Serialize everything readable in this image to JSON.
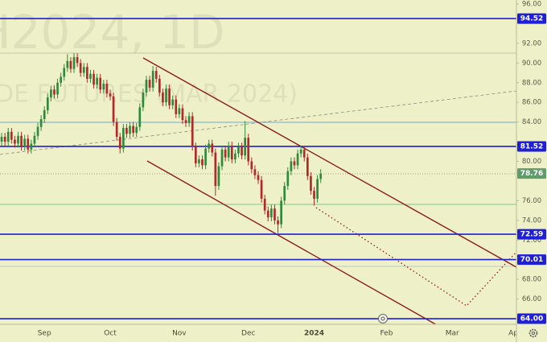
{
  "chart_data": {
    "type": "candlestick",
    "watermark": "H2024, 1D",
    "watermark_subtitle": "DE FUTURES (MAR 2024)",
    "categories": [
      null,
      null,
      null,
      null,
      null,
      null,
      null,
      null,
      null,
      null,
      null,
      null,
      null,
      "Sep",
      null,
      null,
      null,
      null,
      null,
      null,
      null,
      null,
      null,
      null,
      null,
      null,
      null,
      null,
      null,
      null,
      null,
      null,
      null,
      "Oct",
      null,
      null,
      null,
      null,
      null,
      null,
      null,
      null,
      null,
      null,
      null,
      null,
      null,
      null,
      null,
      null,
      null,
      null,
      null,
      null,
      "Nov",
      null,
      null,
      null,
      null,
      null,
      null,
      null,
      null,
      null,
      null,
      null,
      null,
      null,
      null,
      null,
      null,
      null,
      null,
      null,
      null,
      "Dec",
      null,
      null,
      null,
      null,
      null,
      null,
      null,
      null,
      null,
      null,
      null,
      null,
      null,
      null,
      null,
      null,
      null,
      null,
      null,
      "2024",
      null,
      null,
      null,
      null,
      null,
      null,
      null,
      null,
      null,
      null,
      null,
      null,
      null,
      null,
      null,
      null,
      null,
      null,
      null,
      null,
      null,
      "Feb",
      null,
      null,
      null,
      null,
      null,
      null,
      null,
      null,
      null,
      null,
      null,
      null,
      null,
      null,
      null,
      null,
      null,
      null,
      null,
      "Mar",
      null,
      null,
      null,
      null,
      null,
      null,
      null,
      null,
      null,
      null,
      null,
      null,
      null,
      null,
      null,
      null,
      null,
      null,
      "Apr"
    ],
    "candles": {
      "up_color": "#2f8a3c",
      "down_color": "#b02a2a",
      "open": [
        82.0,
        82.5,
        82.0,
        83.0,
        82.2,
        81.8,
        82.6,
        81.5,
        82.3,
        81.2,
        81.8,
        82.6,
        83.5,
        84.3,
        85.2,
        86.5,
        87.3,
        86.8,
        88.0,
        88.6,
        89.5,
        90.2,
        89.4,
        90.6,
        90.0,
        89.0,
        89.6,
        88.4,
        88.9,
        87.8,
        88.5,
        87.3,
        87.9,
        86.9,
        86.6,
        84.0,
        82.5,
        81.3,
        83.4,
        82.8,
        83.6,
        82.9,
        83.5,
        85.5,
        87.0,
        88.3,
        87.5,
        89.2,
        88.4,
        87.0,
        86.0,
        87.4,
        85.7,
        86.3,
        84.8,
        85.4,
        84.2,
        83.9,
        84.6,
        81.5,
        79.8,
        80.2,
        79.6,
        81.3,
        81.8,
        80.9,
        77.5,
        79.5,
        81.2,
        80.4,
        81.6,
        80.2,
        80.8,
        81.5,
        80.6,
        82.4,
        80.0,
        79.2,
        78.6,
        78.1,
        76.2,
        75.0,
        74.3,
        75.2,
        74.0,
        73.6,
        76.0,
        77.5,
        79.0,
        80.0,
        79.6,
        80.8,
        81.2,
        80.4,
        78.5,
        77.0,
        76.2,
        78.2,
        null,
        null,
        null,
        null,
        null,
        null,
        null,
        null,
        null,
        null,
        null,
        null,
        null,
        null,
        null,
        null,
        null,
        null,
        null,
        null,
        null,
        null,
        null,
        null,
        null,
        null,
        null,
        null,
        null,
        null,
        null,
        null,
        null,
        null,
        null,
        null,
        null,
        null,
        null,
        null,
        null,
        null,
        null,
        null,
        null,
        null,
        null,
        null,
        null,
        null,
        null,
        null,
        null,
        null,
        null
      ],
      "high": [
        82.9,
        82.9,
        83.4,
        83.4,
        82.6,
        83.0,
        83.0,
        82.7,
        82.7,
        82.2,
        83.0,
        83.9,
        84.7,
        85.6,
        86.9,
        87.7,
        87.7,
        88.4,
        89.0,
        89.9,
        90.9,
        90.6,
        91.0,
        91.0,
        90.4,
        90.0,
        90.0,
        89.3,
        89.3,
        88.9,
        88.9,
        88.3,
        88.3,
        87.3,
        87.0,
        84.4,
        82.9,
        83.8,
        83.8,
        84.0,
        84.0,
        83.9,
        85.9,
        87.4,
        88.7,
        88.7,
        89.7,
        89.6,
        88.8,
        87.4,
        87.8,
        87.8,
        86.7,
        86.7,
        85.8,
        85.8,
        84.6,
        85.0,
        85.0,
        81.9,
        80.6,
        80.6,
        81.7,
        82.2,
        82.2,
        81.3,
        79.9,
        81.6,
        81.6,
        82.0,
        82.0,
        81.2,
        81.9,
        81.9,
        84.1,
        82.8,
        80.4,
        79.6,
        79.0,
        78.5,
        76.6,
        75.4,
        75.6,
        75.6,
        74.4,
        76.4,
        77.9,
        79.4,
        80.4,
        80.4,
        81.2,
        81.6,
        81.6,
        80.8,
        78.9,
        77.4,
        78.6,
        79.2,
        null,
        null,
        null,
        null,
        null,
        null,
        null,
        null,
        null,
        null,
        null,
        null,
        null,
        null,
        null,
        null,
        null,
        null,
        null,
        null,
        null,
        null,
        null,
        null,
        null,
        null,
        null,
        null,
        null,
        null,
        null,
        null,
        null,
        null,
        null,
        null,
        null,
        null,
        null,
        null,
        null,
        null,
        null,
        null,
        null,
        null,
        null,
        null,
        null,
        null,
        null,
        null,
        null,
        null,
        null
      ],
      "low": [
        81.6,
        81.6,
        81.6,
        81.8,
        81.4,
        81.4,
        81.1,
        81.1,
        80.8,
        80.8,
        81.4,
        82.2,
        83.1,
        83.9,
        84.8,
        86.1,
        86.4,
        86.4,
        87.6,
        88.2,
        89.1,
        89.0,
        89.0,
        89.6,
        88.6,
        88.6,
        88.0,
        88.0,
        87.4,
        87.4,
        86.9,
        86.9,
        86.5,
        86.2,
        83.6,
        82.1,
        80.8,
        80.9,
        82.4,
        82.4,
        82.5,
        82.5,
        83.1,
        85.1,
        86.6,
        87.1,
        87.1,
        88.0,
        86.6,
        85.6,
        85.6,
        85.3,
        85.3,
        84.4,
        84.4,
        83.8,
        83.5,
        83.5,
        81.1,
        79.4,
        79.4,
        79.2,
        79.2,
        80.9,
        80.5,
        76.5,
        77.1,
        79.1,
        80.0,
        80.0,
        79.8,
        79.8,
        80.4,
        80.2,
        80.2,
        79.6,
        78.8,
        78.2,
        77.7,
        75.8,
        74.6,
        73.9,
        73.9,
        73.6,
        72.7,
        73.2,
        75.6,
        77.1,
        78.6,
        79.2,
        79.2,
        80.4,
        80.0,
        78.1,
        76.6,
        75.5,
        75.8,
        77.8,
        null,
        null,
        null,
        null,
        null,
        null,
        null,
        null,
        null,
        null,
        null,
        null,
        null,
        null,
        null,
        null,
        null,
        null,
        null,
        null,
        null,
        null,
        null,
        null,
        null,
        null,
        null,
        null,
        null,
        null,
        null,
        null,
        null,
        null,
        null,
        null,
        null,
        null,
        null,
        null,
        null,
        null,
        null,
        null,
        null,
        null,
        null,
        null,
        null,
        null,
        null,
        null,
        null,
        null,
        null
      ],
      "close": [
        82.5,
        82.0,
        83.0,
        82.2,
        81.8,
        82.6,
        81.5,
        82.3,
        81.2,
        81.8,
        82.6,
        83.5,
        84.3,
        85.2,
        86.5,
        87.3,
        86.8,
        88.0,
        88.6,
        89.5,
        90.2,
        89.4,
        90.6,
        90.0,
        89.0,
        89.6,
        88.4,
        88.9,
        87.8,
        88.5,
        87.3,
        87.9,
        86.9,
        86.6,
        84.0,
        82.5,
        81.3,
        83.4,
        82.8,
        83.6,
        82.9,
        83.5,
        85.5,
        87.0,
        88.3,
        87.5,
        89.2,
        88.4,
        87.0,
        86.0,
        87.4,
        85.7,
        86.3,
        84.8,
        85.4,
        84.2,
        83.9,
        84.6,
        81.5,
        79.8,
        80.2,
        79.6,
        81.3,
        81.8,
        80.9,
        77.5,
        79.5,
        81.2,
        80.4,
        81.6,
        80.2,
        80.8,
        81.5,
        80.6,
        82.4,
        80.0,
        79.2,
        78.6,
        78.1,
        76.2,
        75.0,
        74.3,
        75.2,
        74.0,
        73.6,
        76.0,
        77.5,
        79.0,
        80.0,
        79.6,
        80.8,
        81.2,
        80.4,
        78.5,
        77.0,
        76.2,
        78.2,
        78.76,
        null,
        null,
        null,
        null,
        null,
        null,
        null,
        null,
        null,
        null,
        null,
        null,
        null,
        null,
        null,
        null,
        null,
        null,
        null,
        null,
        null,
        null,
        null,
        null,
        null,
        null,
        null,
        null,
        null,
        null,
        null,
        null,
        null,
        null,
        null,
        null,
        null,
        null,
        null,
        null,
        null,
        null,
        null,
        null,
        null,
        null,
        null,
        null,
        null,
        null,
        null,
        null,
        null,
        null,
        null
      ]
    },
    "last_price_color": "#5f9b6b",
    "levels": [
      {
        "value": 94.52,
        "label": "94.52"
      },
      {
        "value": 81.52,
        "label": "81.52"
      },
      {
        "value": 72.59,
        "label": "72.59"
      },
      {
        "value": 70.01,
        "label": "70.01"
      },
      {
        "value": 64,
        "label": "64.00"
      }
    ],
    "level_color": "#1f1fd6",
    "ylim": [
      63.43,
      96.41
    ],
    "yticks": [
      {
        "value": 96,
        "label": "96.00"
      },
      {
        "value": 92,
        "label": "92.00"
      },
      {
        "value": 90,
        "label": "90.00"
      },
      {
        "value": 88,
        "label": "88.00"
      },
      {
        "value": 86,
        "label": "86.00"
      },
      {
        "value": 84,
        "label": "84.00"
      },
      {
        "value": 80,
        "label": "80.00"
      },
      {
        "value": 76,
        "label": "76.00"
      },
      {
        "value": 74,
        "label": "74.00"
      },
      {
        "value": 72,
        "label": "72.00"
      },
      {
        "value": 68,
        "label": "68.00"
      },
      {
        "value": 66,
        "label": "66.00"
      }
    ]
  }
}
